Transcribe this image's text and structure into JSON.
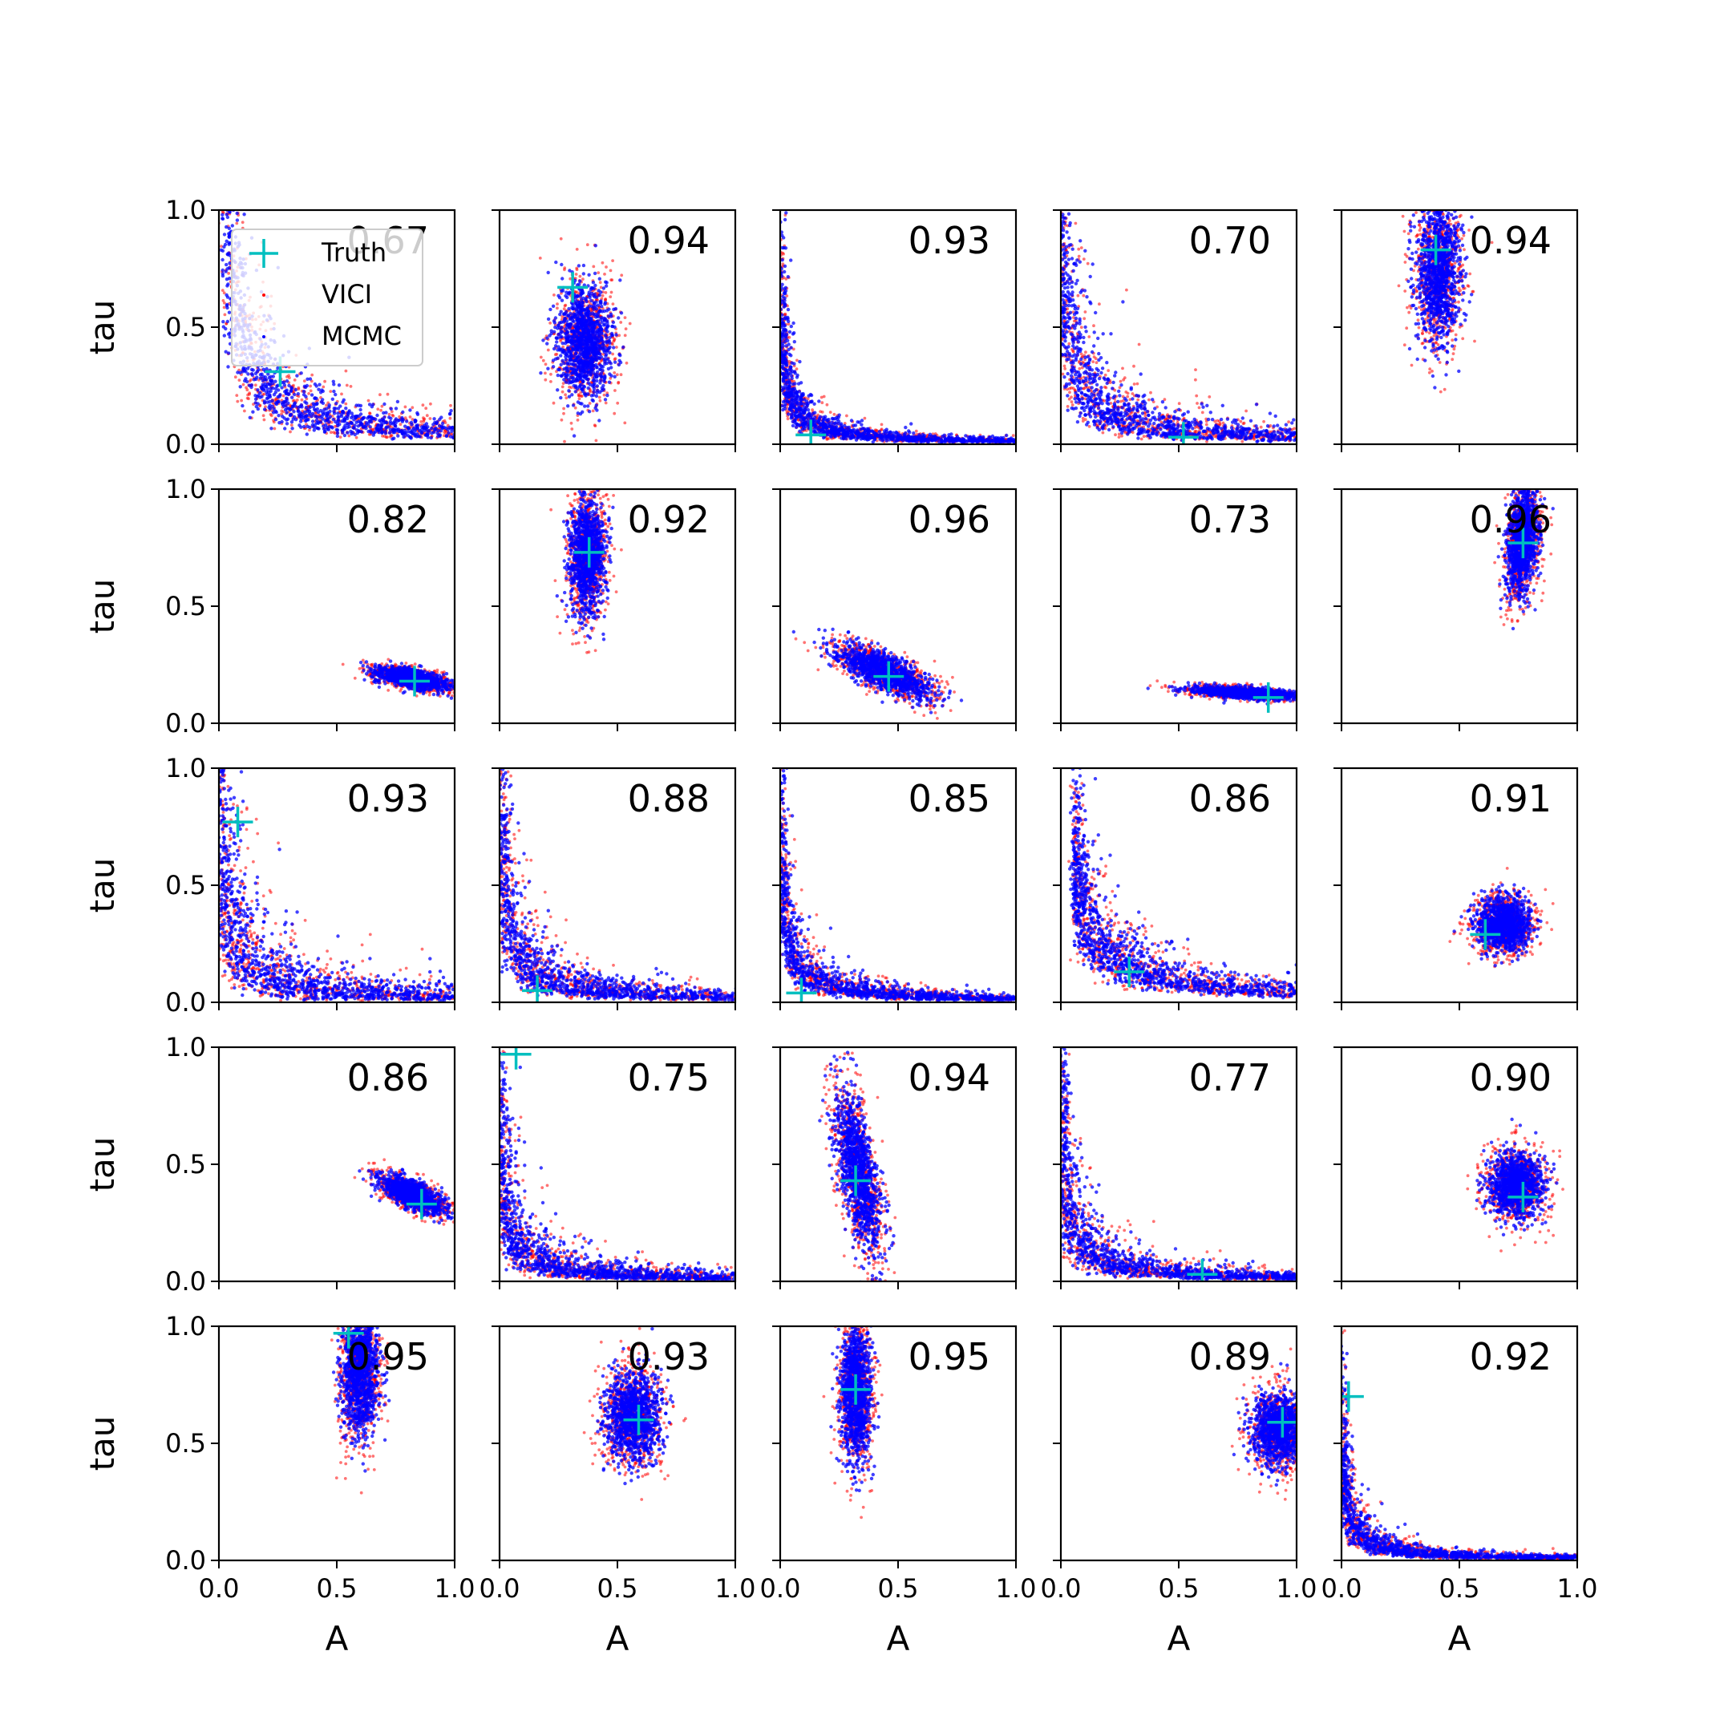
{
  "chart_data": {
    "type": "scatter",
    "layout": {
      "rows": 5,
      "cols": 5
    },
    "xlabel": "A",
    "ylabel": "tau",
    "xlim": [
      0,
      1
    ],
    "ylim": [
      0,
      1
    ],
    "xticks": [
      "0.0",
      "0.5",
      "1.0"
    ],
    "yticks": [
      "0.0",
      "0.5",
      "1.0"
    ],
    "legend": {
      "placement": "upper-left of first panel",
      "entries": [
        {
          "label": "Truth",
          "marker": "cross",
          "color": "#00bfbf"
        },
        {
          "label": "VICI",
          "marker": "dot",
          "color": "#ff0000"
        },
        {
          "label": "MCMC",
          "marker": "dot",
          "color": "#0000ff"
        }
      ]
    },
    "colors": {
      "vici": "#ff0000",
      "mcmc": "#0000ff",
      "truth": "#00bfbf"
    },
    "panels": [
      {
        "score": "0.67",
        "truth": [
          0.26,
          0.31
        ],
        "shape": "curve",
        "params": {
          "k": 0.06,
          "spread": 0.35
        }
      },
      {
        "score": "0.94",
        "truth": [
          0.31,
          0.67
        ],
        "shape": "blob",
        "params": {
          "cx": 0.36,
          "cy": 0.44,
          "sx": 0.06,
          "sy": 0.12
        }
      },
      {
        "score": "0.93",
        "truth": [
          0.13,
          0.04
        ],
        "shape": "curve",
        "params": {
          "k": 0.015,
          "spread": 0.3
        }
      },
      {
        "score": "0.70",
        "truth": [
          0.52,
          0.03
        ],
        "shape": "curve",
        "params": {
          "k": 0.035,
          "spread": 0.45
        }
      },
      {
        "score": "0.94",
        "truth": [
          0.4,
          0.83
        ],
        "shape": "blob",
        "params": {
          "cx": 0.41,
          "cy": 0.75,
          "sx": 0.05,
          "sy": 0.16
        }
      },
      {
        "score": "0.82",
        "truth": [
          0.83,
          0.18
        ],
        "shape": "tilted",
        "params": {
          "cx": 0.82,
          "cy": 0.19,
          "sx": 0.08,
          "sy": 0.02,
          "slope": -0.18
        }
      },
      {
        "score": "0.92",
        "truth": [
          0.38,
          0.73
        ],
        "shape": "blob",
        "params": {
          "cx": 0.37,
          "cy": 0.72,
          "sx": 0.04,
          "sy": 0.13
        }
      },
      {
        "score": "0.96",
        "truth": [
          0.46,
          0.2
        ],
        "shape": "tilted",
        "params": {
          "cx": 0.44,
          "cy": 0.22,
          "sx": 0.1,
          "sy": 0.04,
          "slope": -0.4
        }
      },
      {
        "score": "0.73",
        "truth": [
          0.88,
          0.11
        ],
        "shape": "tilted",
        "params": {
          "cx": 0.78,
          "cy": 0.13,
          "sx": 0.12,
          "sy": 0.012,
          "slope": -0.06
        }
      },
      {
        "score": "0.96",
        "truth": [
          0.77,
          0.77
        ],
        "shape": "tilted",
        "params": {
          "cx": 0.77,
          "cy": 0.78,
          "sx": 0.035,
          "sy": 0.11,
          "slope": 0.9
        }
      },
      {
        "score": "0.93",
        "truth": [
          0.08,
          0.77
        ],
        "shape": "curve",
        "params": {
          "k": 0.03,
          "spread": 0.6
        }
      },
      {
        "score": "0.88",
        "truth": [
          0.16,
          0.05
        ],
        "shape": "curve",
        "params": {
          "k": 0.025,
          "spread": 0.45
        }
      },
      {
        "score": "0.85",
        "truth": [
          0.09,
          0.04
        ],
        "shape": "curve",
        "params": {
          "k": 0.018,
          "spread": 0.35
        }
      },
      {
        "score": "0.86",
        "truth": [
          0.29,
          0.13
        ],
        "shape": "curve",
        "params": {
          "k": 0.05,
          "spread": 0.3,
          "xmin": 0.06
        }
      },
      {
        "score": "0.91",
        "truth": [
          0.61,
          0.29
        ],
        "shape": "blob",
        "params": {
          "cx": 0.69,
          "cy": 0.33,
          "sx": 0.06,
          "sy": 0.06
        }
      },
      {
        "score": "0.86",
        "truth": [
          0.86,
          0.33
        ],
        "shape": "tilted",
        "params": {
          "cx": 0.82,
          "cy": 0.37,
          "sx": 0.07,
          "sy": 0.03,
          "slope": -0.4
        }
      },
      {
        "score": "0.75",
        "truth": [
          0.07,
          0.97
        ],
        "shape": "curve",
        "params": {
          "k": 0.018,
          "spread": 0.5
        }
      },
      {
        "score": "0.94",
        "truth": [
          0.32,
          0.43
        ],
        "shape": "tilted",
        "params": {
          "cx": 0.33,
          "cy": 0.47,
          "sx": 0.05,
          "sy": 0.14,
          "slope": -2.2
        }
      },
      {
        "score": "0.77",
        "truth": [
          0.6,
          0.03
        ],
        "shape": "curve",
        "params": {
          "k": 0.02,
          "spread": 0.45
        }
      },
      {
        "score": "0.90",
        "truth": [
          0.77,
          0.36
        ],
        "shape": "blob",
        "params": {
          "cx": 0.74,
          "cy": 0.41,
          "sx": 0.06,
          "sy": 0.07
        }
      },
      {
        "score": "0.95",
        "truth": [
          0.55,
          0.97
        ],
        "shape": "blob",
        "params": {
          "cx": 0.6,
          "cy": 0.8,
          "sx": 0.04,
          "sy": 0.14
        }
      },
      {
        "score": "0.93",
        "truth": [
          0.59,
          0.6
        ],
        "shape": "blob",
        "params": {
          "cx": 0.56,
          "cy": 0.62,
          "sx": 0.06,
          "sy": 0.1
        }
      },
      {
        "score": "0.95",
        "truth": [
          0.32,
          0.73
        ],
        "shape": "blob",
        "params": {
          "cx": 0.32,
          "cy": 0.72,
          "sx": 0.035,
          "sy": 0.15
        }
      },
      {
        "score": "0.89",
        "truth": [
          0.94,
          0.59
        ],
        "shape": "blob",
        "params": {
          "cx": 0.93,
          "cy": 0.56,
          "sx": 0.06,
          "sy": 0.08
        }
      },
      {
        "score": "0.92",
        "truth": [
          0.03,
          0.7
        ],
        "shape": "curve",
        "params": {
          "k": 0.012,
          "spread": 0.35
        }
      }
    ]
  }
}
